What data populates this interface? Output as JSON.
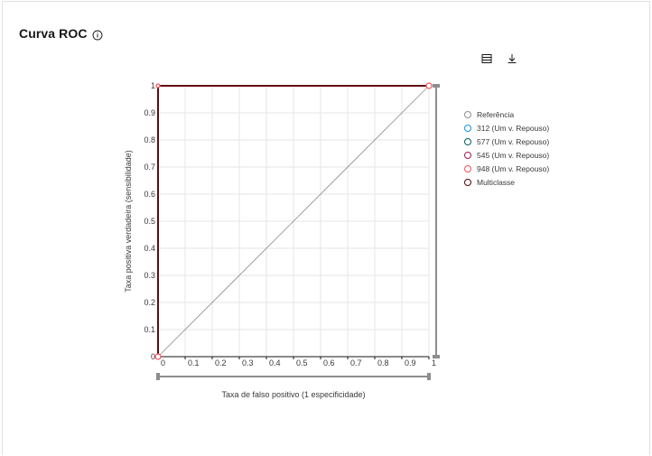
{
  "header": {
    "title": "Curva ROC"
  },
  "icons": {
    "info": "info-circle-icon",
    "table": "table-view-icon",
    "download": "download-icon"
  },
  "chart_data": {
    "type": "line",
    "xlabel": "Taxa de falso positivo (1 especificidade)",
    "ylabel": "Taxa positiva verdadeira (sensibilidade)",
    "xlim": [
      0,
      1
    ],
    "ylim": [
      0,
      1
    ],
    "x_ticks": [
      "0",
      "0.1",
      "0.2",
      "0.3",
      "0.4",
      "0.5",
      "0.6",
      "0.7",
      "0.8",
      "0.9",
      "1"
    ],
    "y_ticks": [
      "0",
      "0.1",
      "0.2",
      "0.3",
      "0.4",
      "0.5",
      "0.6",
      "0.7",
      "0.8",
      "0.9",
      "1"
    ],
    "grid": true,
    "legend_position": "right",
    "series": [
      {
        "name": "Referência",
        "color": "#8d8d8d",
        "points": [
          [
            0,
            0
          ],
          [
            1,
            1
          ]
        ]
      },
      {
        "name": "312 (Um v. Repouso)",
        "color": "#1192e8",
        "points": [
          [
            0,
            0
          ],
          [
            0,
            1
          ],
          [
            1,
            1
          ]
        ]
      },
      {
        "name": "577 (Um v. Repouso)",
        "color": "#005d5d",
        "points": [
          [
            0,
            0
          ],
          [
            0,
            1
          ],
          [
            1,
            1
          ]
        ]
      },
      {
        "name": "545 (Um v. Repouso)",
        "color": "#9f1853",
        "points": [
          [
            0,
            0
          ],
          [
            0,
            1
          ],
          [
            1,
            1
          ]
        ]
      },
      {
        "name": "948 (Um v. Repouso)",
        "color": "#fa4d56",
        "points": [
          [
            0,
            0
          ],
          [
            0,
            1
          ],
          [
            1,
            1
          ]
        ]
      },
      {
        "name": "Multiclasse",
        "color": "#520408",
        "points": [
          [
            0,
            0
          ],
          [
            0,
            1
          ],
          [
            1,
            1
          ]
        ]
      }
    ]
  }
}
